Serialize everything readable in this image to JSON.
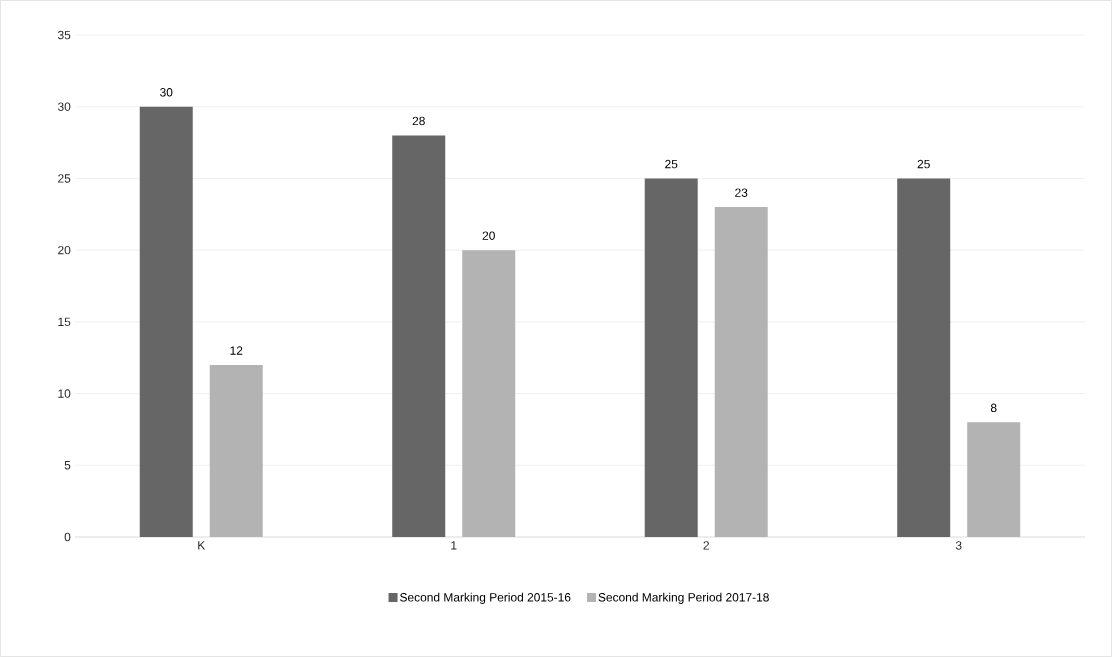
{
  "chart_data": {
    "type": "bar",
    "categories": [
      "K",
      "1",
      "2",
      "3"
    ],
    "series": [
      {
        "name": "Second Marking Period 2015-16",
        "color": "#666666",
        "values": [
          30,
          28,
          25,
          25
        ]
      },
      {
        "name": "Second Marking Period 2017-18",
        "color": "#b3b3b3",
        "values": [
          12,
          20,
          23,
          8
        ]
      }
    ],
    "ylim": [
      0,
      35
    ],
    "yticks": [
      0,
      5,
      10,
      15,
      20,
      25,
      30,
      35
    ],
    "grid": "y",
    "legend": "bottom",
    "data_labels": true
  }
}
